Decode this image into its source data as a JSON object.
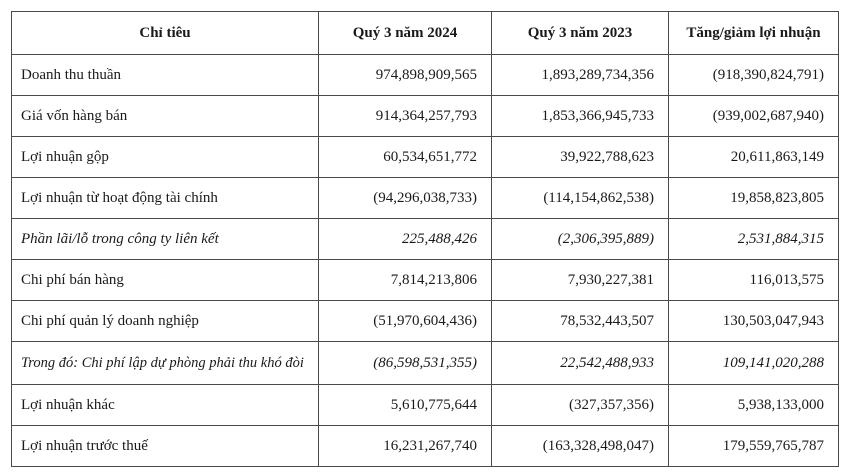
{
  "table": {
    "headers": [
      "Chỉ tiêu",
      "Quý 3 năm 2024",
      "Quý 3 năm 2023",
      "Tăng/giảm lợi nhuận"
    ],
    "rows": [
      {
        "label": "Doanh thu thuần",
        "q3_2024": "974,898,909,565",
        "q3_2023": "1,893,289,734,356",
        "change": "(918,390,824,791)"
      },
      {
        "label": "Giá vốn hàng bán",
        "q3_2024": "914,364,257,793",
        "q3_2023": "1,853,366,945,733",
        "change": "(939,002,687,940)"
      },
      {
        "label": "Lợi nhuận gộp",
        "q3_2024": "60,534,651,772",
        "q3_2023": "39,922,788,623",
        "change": "20,611,863,149"
      },
      {
        "label": "Lợi nhuận từ hoạt động tài chính",
        "q3_2024": "(94,296,038,733)",
        "q3_2023": "(114,154,862,538)",
        "change": "19,858,823,805"
      },
      {
        "label": "Phần lãi/lỗ trong công ty liên kết",
        "q3_2024": "225,488,426",
        "q3_2023": "(2,306,395,889)",
        "change": "2,531,884,315"
      },
      {
        "label": "Chi phí bán hàng",
        "q3_2024": "7,814,213,806",
        "q3_2023": "7,930,227,381",
        "change": "116,013,575"
      },
      {
        "label": "Chi phí quản lý doanh nghiệp",
        "q3_2024": "(51,970,604,436)",
        "q3_2023": "78,532,443,507",
        "change": "130,503,047,943"
      },
      {
        "label": "Trong đó: Chi phí lập dự phòng phải thu khó đòi",
        "q3_2024": "(86,598,531,355)",
        "q3_2023": "22,542,488,933",
        "change": "109,141,020,288"
      },
      {
        "label": "Lợi nhuận khác",
        "q3_2024": "5,610,775,644",
        "q3_2023": "(327,357,356)",
        "change": "5,938,133,000"
      },
      {
        "label": "Lợi nhuận trước thuế",
        "q3_2024": "16,231,267,740",
        "q3_2023": "(163,328,498,047)",
        "change": "179,559,765,787"
      }
    ]
  }
}
